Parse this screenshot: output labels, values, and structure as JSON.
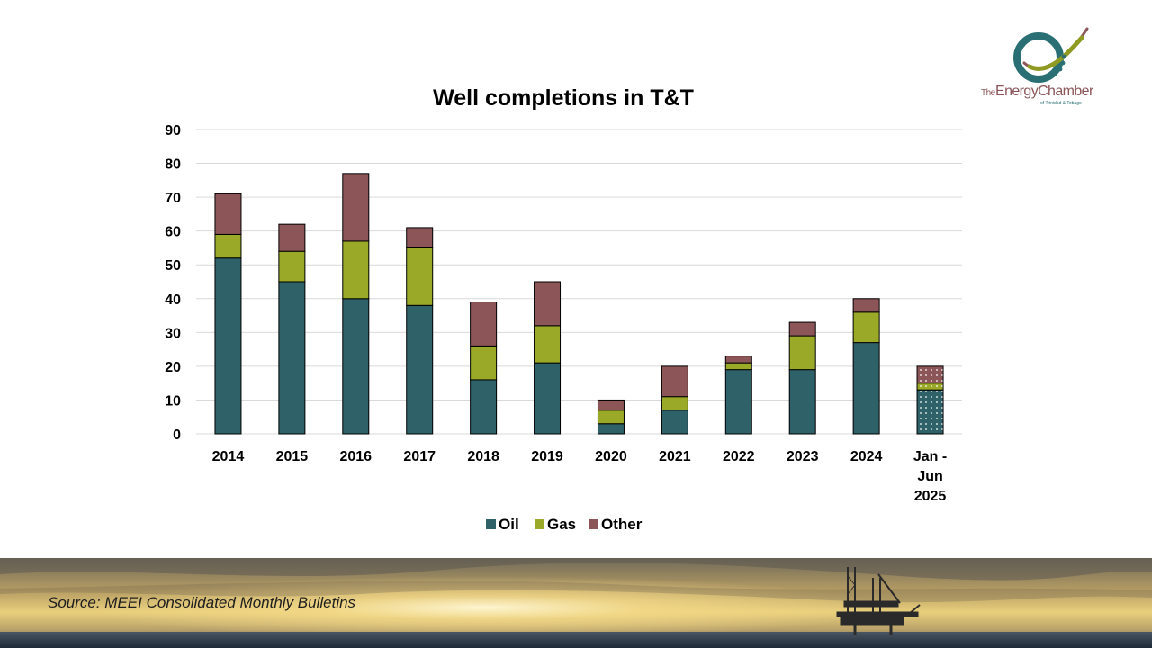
{
  "logo": {
    "line1_prefix": "The",
    "line1_main": "EnergyChamber",
    "line2": "of Trinidad & Tobago"
  },
  "footer": {
    "source": "Source: MEEI Consolidated Monthly Bulletins"
  },
  "colors": {
    "oil": "#2e6168",
    "gas": "#9aaa28",
    "other": "#8c5558",
    "gridline": "#d9d9d9",
    "accent_logo_teal": "#2a6f73",
    "accent_logo_olive": "#8f9a23"
  },
  "chart_data": {
    "type": "bar",
    "stacked": true,
    "title": "Well completions in T&T",
    "xlabel": "",
    "ylabel": "",
    "ylim": [
      0,
      90
    ],
    "yticks": [
      0,
      10,
      20,
      30,
      40,
      50,
      60,
      70,
      80,
      90
    ],
    "grid": true,
    "legend_position": "bottom",
    "categories": [
      "2014",
      "2015",
      "2016",
      "2017",
      "2018",
      "2019",
      "2020",
      "2021",
      "2022",
      "2023",
      "2024",
      "Jan - Jun 2025"
    ],
    "category_lines": [
      [
        "2014"
      ],
      [
        "2015"
      ],
      [
        "2016"
      ],
      [
        "2017"
      ],
      [
        "2018"
      ],
      [
        "2019"
      ],
      [
        "2020"
      ],
      [
        "2021"
      ],
      [
        "2022"
      ],
      [
        "2023"
      ],
      [
        "2024"
      ],
      [
        "Jan -",
        "Jun",
        "2025"
      ]
    ],
    "partial_period_category": "Jan - Jun 2025",
    "series": [
      {
        "name": "Oil",
        "values": [
          52,
          45,
          40,
          38,
          16,
          21,
          3,
          7,
          19,
          19,
          27,
          13
        ]
      },
      {
        "name": "Gas",
        "values": [
          7,
          9,
          17,
          17,
          10,
          11,
          4,
          4,
          2,
          10,
          9,
          2
        ]
      },
      {
        "name": "Other",
        "values": [
          12,
          8,
          20,
          6,
          13,
          13,
          3,
          9,
          2,
          4,
          4,
          5
        ]
      }
    ]
  }
}
